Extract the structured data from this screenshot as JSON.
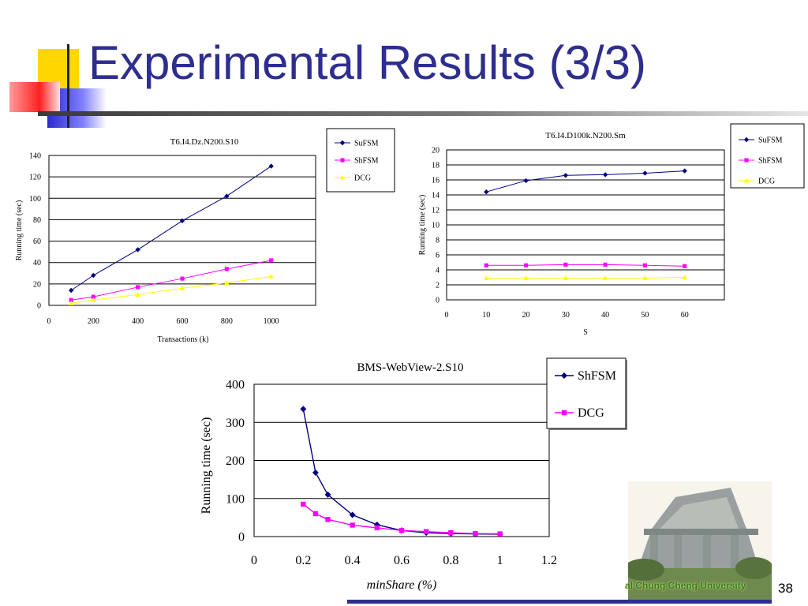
{
  "slide": {
    "title": "Experimental Results (3/3)",
    "page_number": "38",
    "university_label": "al Chung Cheng University"
  },
  "colors": {
    "title": "#2e2e8f",
    "series_navy": "#000080",
    "series_magenta": "#ff00ff",
    "series_yellow": "#ffff00"
  },
  "chart_data": [
    {
      "type": "line",
      "title": "T6.I4.Dz.N200.S10",
      "xlabel": "Transactions (k)",
      "ylabel": "Running time (sec)",
      "xlim": [
        0,
        1200
      ],
      "ylim": [
        0,
        140
      ],
      "xticks": [
        0,
        200,
        400,
        600,
        800,
        1000
      ],
      "yticks": [
        0,
        20,
        40,
        60,
        80,
        100,
        120,
        140
      ],
      "grid": "horizontal",
      "legend": "top-right, outside",
      "x": [
        100,
        200,
        400,
        600,
        800,
        1000
      ],
      "series": [
        {
          "name": "SuFSM",
          "color": "#000080",
          "marker": "diamond",
          "values": [
            14,
            28,
            52,
            79,
            102,
            130
          ]
        },
        {
          "name": "ShFSM",
          "color": "#ff00ff",
          "marker": "square",
          "values": [
            5,
            8,
            17,
            25,
            34,
            42
          ]
        },
        {
          "name": "DCG",
          "color": "#ffff00",
          "marker": "triangle",
          "values": [
            2,
            5,
            10,
            16,
            21,
            27
          ]
        }
      ]
    },
    {
      "type": "line",
      "title": "T6.I4.D100k.N200.Sm",
      "xlabel": "S",
      "ylabel": "Running time (sec)",
      "xlim": [
        0,
        70
      ],
      "ylim": [
        0,
        20
      ],
      "xticks": [
        0,
        10,
        20,
        30,
        40,
        50,
        60
      ],
      "yticks": [
        0,
        2,
        4,
        6,
        8,
        10,
        12,
        14,
        16,
        18,
        20
      ],
      "grid": "horizontal",
      "legend": "top-right, outside",
      "x": [
        10,
        20,
        30,
        40,
        50,
        60
      ],
      "series": [
        {
          "name": "SuFSM",
          "color": "#000080",
          "marker": "diamond",
          "values": [
            14.4,
            15.9,
            16.6,
            16.7,
            16.9,
            17.2
          ]
        },
        {
          "name": "ShFSM",
          "color": "#ff00ff",
          "marker": "square",
          "values": [
            4.6,
            4.6,
            4.7,
            4.7,
            4.6,
            4.5
          ]
        },
        {
          "name": "DCG",
          "color": "#ffff00",
          "marker": "triangle",
          "values": [
            2.9,
            2.9,
            2.9,
            2.9,
            2.9,
            3.0
          ]
        }
      ]
    },
    {
      "type": "line",
      "title": "BMS-WebView-2.S10",
      "xlabel": "minShare  (%)",
      "ylabel": "Running time (sec)",
      "xlim": [
        0,
        1.2
      ],
      "ylim": [
        0,
        400
      ],
      "xticks": [
        0,
        0.2,
        0.4,
        0.6,
        0.8,
        1,
        1.2
      ],
      "yticks": [
        0,
        100,
        200,
        300,
        400
      ],
      "grid": "horizontal",
      "legend": "top-right, outside",
      "x": [
        0.2,
        0.25,
        0.3,
        0.4,
        0.5,
        0.6,
        0.7,
        0.8,
        0.9,
        1
      ],
      "series": [
        {
          "name": "ShFSM",
          "color": "#000080",
          "marker": "diamond",
          "values": [
            335,
            168,
            110,
            57,
            31,
            16,
            10,
            8,
            7,
            6
          ]
        },
        {
          "name": "DCG",
          "color": "#ff00ff",
          "marker": "square",
          "values": [
            85,
            60,
            45,
            30,
            23,
            16,
            13,
            10,
            8,
            7
          ]
        }
      ]
    }
  ]
}
